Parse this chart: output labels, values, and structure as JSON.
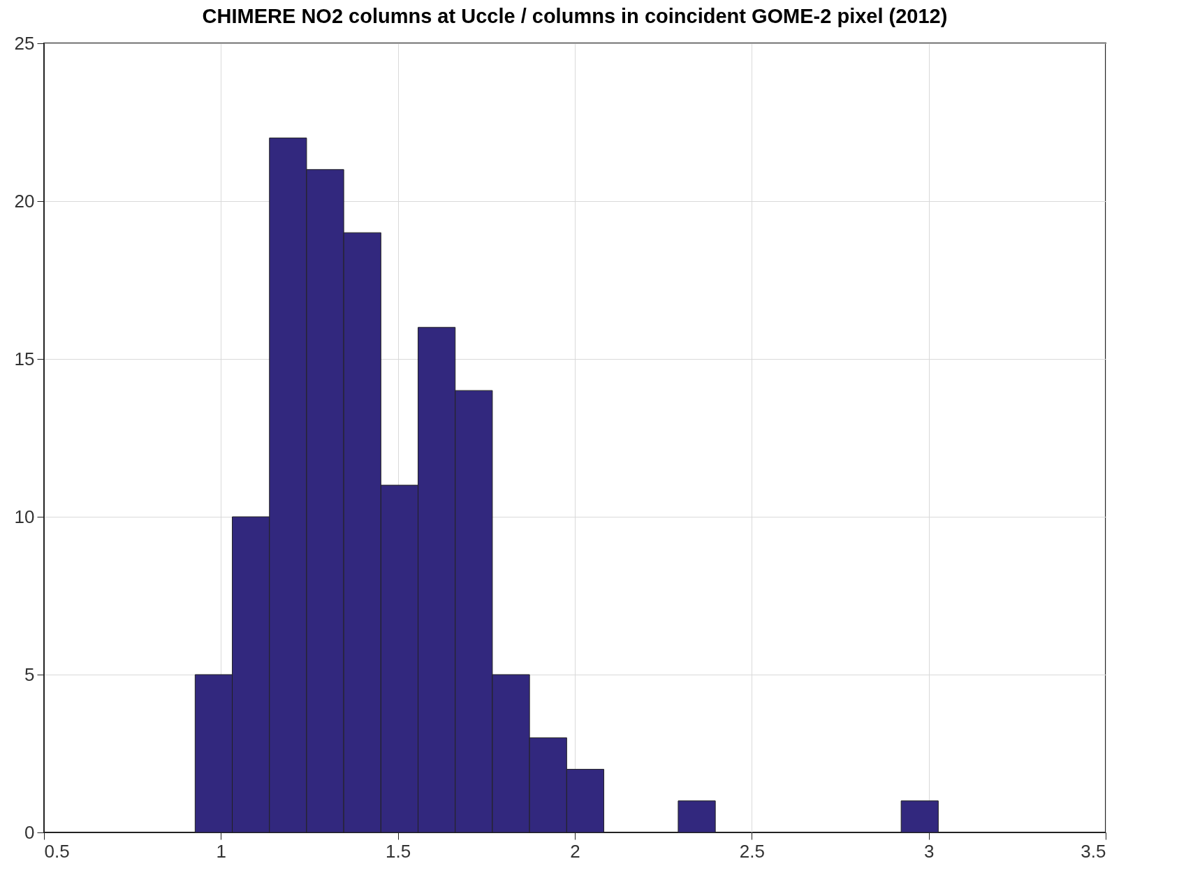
{
  "chart_data": {
    "type": "histogram",
    "title": "CHIMERE NO2 columns at Uccle / columns in coincident GOME-2 pixel (2012)",
    "bins": [
      0.927,
      1.032,
      1.137,
      1.242,
      1.347,
      1.452,
      1.557,
      1.662,
      1.767,
      1.872,
      1.977,
      2.082,
      2.187,
      2.292,
      2.397,
      2.502,
      2.607,
      2.712,
      2.817,
      2.922,
      3.027
    ],
    "values": [
      5,
      10,
      22,
      21,
      19,
      11,
      16,
      14,
      5,
      3,
      2,
      0,
      0,
      1,
      0,
      0,
      0,
      0,
      0,
      1
    ],
    "color": "#32287e",
    "xlim": [
      0.5,
      3.5
    ],
    "xticks": [
      0.5,
      1,
      1.5,
      2,
      2.5,
      3,
      3.5
    ],
    "ylim": [
      0,
      25
    ],
    "yticks": [
      0,
      5,
      10,
      15,
      20,
      25
    ],
    "grid": true
  }
}
